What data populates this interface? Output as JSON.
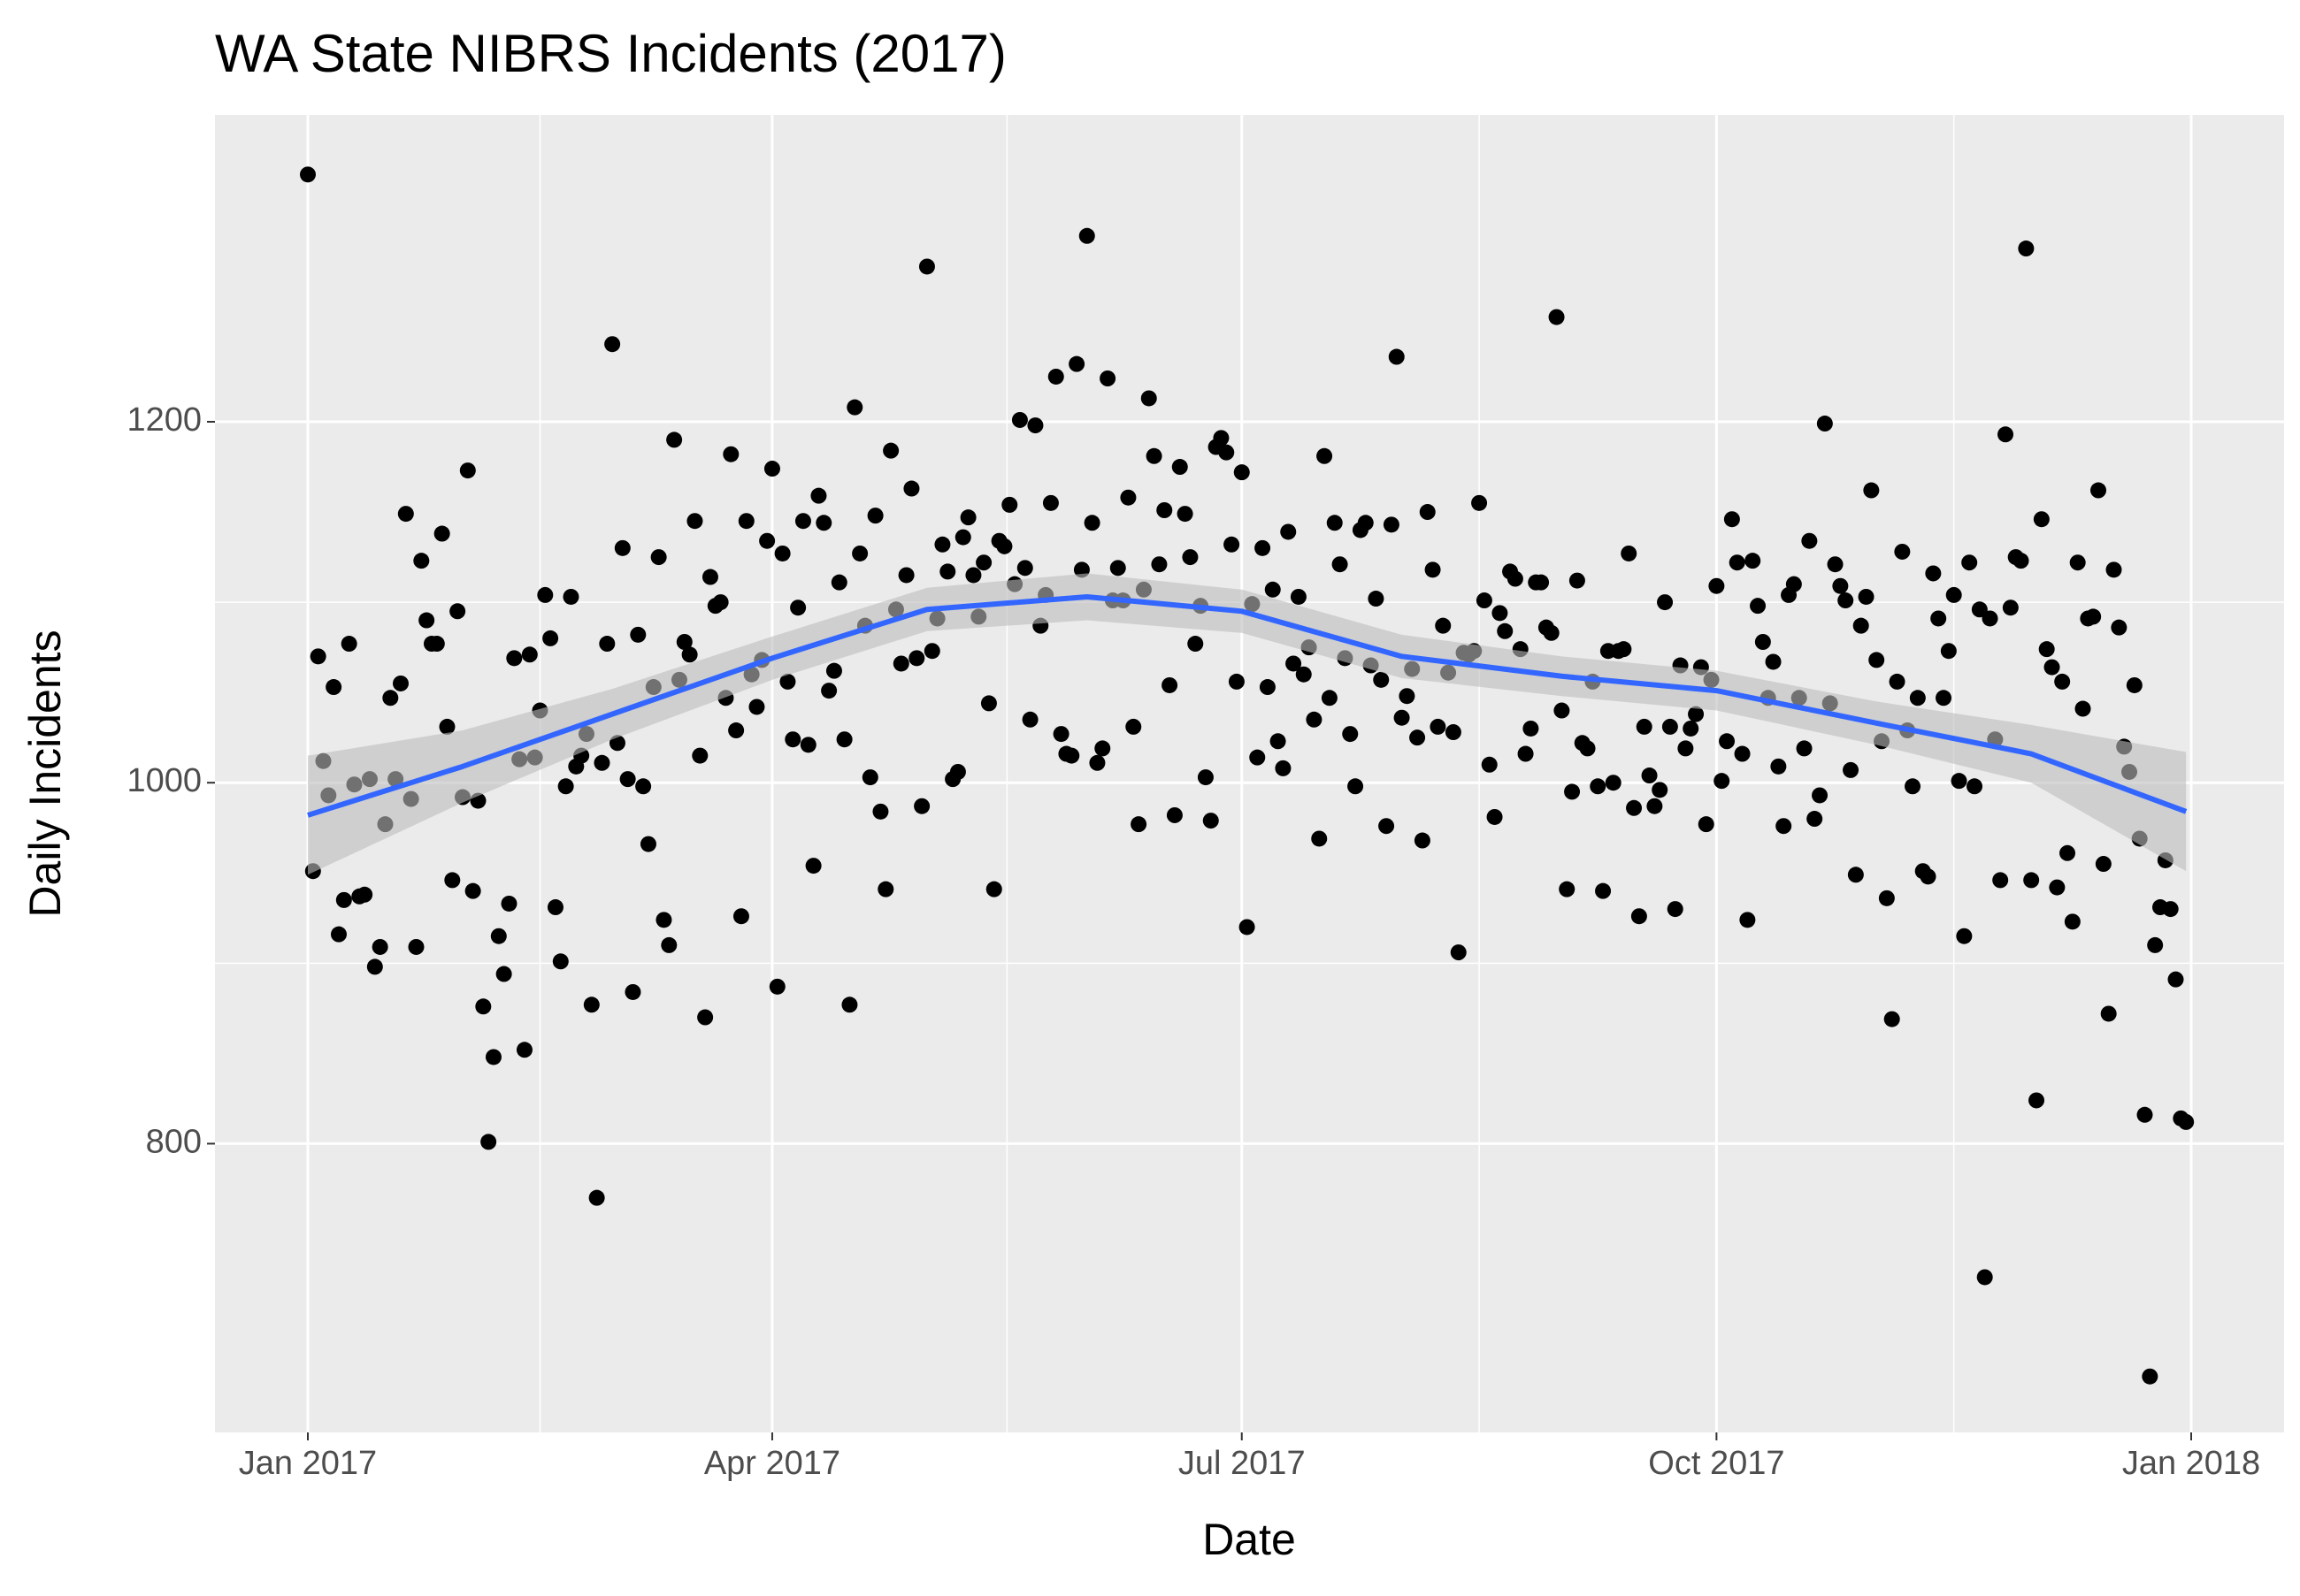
{
  "chart_data": {
    "type": "scatter",
    "title": "WA State NIBRS Incidents (2017)",
    "x_label": "Date",
    "y_label": "Daily Incidents",
    "xlim": [
      -18,
      383
    ],
    "xticks": [
      {
        "value": 0,
        "label": "Jan 2017"
      },
      {
        "value": 90,
        "label": "Apr 2017"
      },
      {
        "value": 181,
        "label": "Jul 2017"
      },
      {
        "value": 273,
        "label": "Oct 2017"
      },
      {
        "value": 365,
        "label": "Jan 2018"
      }
    ],
    "ylim": [
      640,
      1370
    ],
    "yticks": [
      800,
      1000,
      1200
    ],
    "grid": true,
    "point_color": "#000000",
    "x": [
      0,
      1,
      2,
      3,
      4,
      5,
      6,
      7,
      8,
      9,
      10,
      11,
      12,
      13,
      14,
      15,
      16,
      17,
      18,
      19,
      20,
      21,
      22,
      23,
      24,
      25,
      26,
      27,
      28,
      29,
      30,
      31,
      32,
      33,
      34,
      35,
      36,
      37,
      38,
      39,
      40,
      41,
      42,
      43,
      44,
      45,
      46,
      47,
      48,
      49,
      50,
      51,
      52,
      53,
      54,
      55,
      56,
      57,
      58,
      59,
      60,
      61,
      62,
      63,
      64,
      65,
      66,
      67,
      68,
      69,
      70,
      71,
      72,
      73,
      74,
      75,
      76,
      77,
      78,
      79,
      80,
      81,
      82,
      83,
      84,
      85,
      86,
      87,
      88,
      89,
      90,
      91,
      92,
      93,
      94,
      95,
      96,
      97,
      98,
      99,
      100,
      101,
      102,
      103,
      104,
      105,
      106,
      107,
      108,
      109,
      110,
      111,
      112,
      113,
      114,
      115,
      116,
      117,
      118,
      119,
      120,
      121,
      122,
      123,
      124,
      125,
      126,
      127,
      128,
      129,
      130,
      131,
      132,
      133,
      134,
      135,
      136,
      137,
      138,
      139,
      140,
      141,
      142,
      143,
      144,
      145,
      146,
      147,
      148,
      149,
      150,
      151,
      152,
      153,
      154,
      155,
      156,
      157,
      158,
      159,
      160,
      161,
      162,
      163,
      164,
      165,
      166,
      167,
      168,
      169,
      170,
      171,
      172,
      173,
      174,
      175,
      176,
      177,
      178,
      179,
      180,
      181,
      182,
      183,
      184,
      185,
      186,
      187,
      188,
      189,
      190,
      191,
      192,
      193,
      194,
      195,
      196,
      197,
      198,
      199,
      200,
      201,
      202,
      203,
      204,
      205,
      206,
      207,
      208,
      209,
      210,
      211,
      212,
      213,
      214,
      215,
      216,
      217,
      218,
      219,
      220,
      221,
      222,
      223,
      224,
      225,
      226,
      227,
      228,
      229,
      230,
      231,
      232,
      233,
      234,
      235,
      236,
      237,
      238,
      239,
      240,
      241,
      242,
      243,
      244,
      245,
      246,
      247,
      248,
      249,
      250,
      251,
      252,
      253,
      254,
      255,
      256,
      257,
      258,
      259,
      260,
      261,
      262,
      263,
      264,
      265,
      266,
      267,
      268,
      269,
      270,
      271,
      272,
      273,
      274,
      275,
      276,
      277,
      278,
      279,
      280,
      281,
      282,
      283,
      284,
      285,
      286,
      287,
      288,
      289,
      290,
      291,
      292,
      293,
      294,
      295,
      296,
      297,
      298,
      299,
      300,
      301,
      302,
      303,
      304,
      305,
      306,
      307,
      308,
      309,
      310,
      311,
      312,
      313,
      314,
      315,
      316,
      317,
      318,
      319,
      320,
      321,
      322,
      323,
      324,
      325,
      326,
      327,
      328,
      329,
      330,
      331,
      332,
      333,
      334,
      335,
      336,
      337,
      338,
      339,
      340,
      341,
      342,
      343,
      344,
      345,
      346,
      347,
      348,
      349,
      350,
      351,
      352,
      353,
      354,
      355,
      356,
      357,
      358,
      359,
      360,
      361,
      362,
      363,
      364
    ],
    "values": [
      1337,
      951,
      1070,
      1012,
      993,
      1053,
      916,
      935,
      1077,
      999,
      937,
      938,
      1002,
      898,
      909,
      977,
      1047,
      1002,
      1055,
      1149,
      991,
      909,
      1123,
      1090,
      1077,
      1077,
      1138,
      1031,
      946,
      1095,
      992,
      1173,
      940,
      990,
      876,
      801,
      848,
      915,
      894,
      933,
      1069,
      1013,
      852,
      1071,
      1014,
      1040,
      1104,
      1080,
      931,
      901,
      998,
      1103,
      1009,
      1015,
      1027,
      877,
      770,
      1011,
      1077,
      1243,
      1022,
      1130,
      1002,
      884,
      1082,
      998,
      966,
      1053,
      1125,
      924,
      910,
      1190,
      1057,
      1078,
      1071,
      1145,
      1015,
      870,
      1114,
      1098,
      1100,
      1047,
      1182,
      1029,
      926,
      1145,
      1060,
      1042,
      1068,
      1134,
      1174,
      887,
      1127,
      1056,
      1024,
      1097,
      1145,
      1021,
      954,
      1159,
      1144,
      1051,
      1062,
      1111,
      1024,
      877,
      1208,
      1127,
      1087,
      1003,
      1148,
      984,
      941,
      1184,
      1096,
      1066,
      1115,
      1163,
      1069,
      987,
      1286,
      1073,
      1091,
      1132,
      1117,
      1002,
      1006,
      1136,
      1147,
      1115,
      1092,
      1122,
      1044,
      941,
      1134,
      1131,
      1154,
      1110,
      1201,
      1119,
      1035,
      1198,
      1087,
      1104,
      1155,
      1225,
      1027,
      1016,
      1015,
      1232,
      1118,
      1303,
      1144,
      1011,
      1019,
      1224,
      1101,
      1119,
      1101,
      1158,
      1031,
      977,
      1107,
      1213,
      1181,
      1121,
      1151,
      1054,
      982,
      1175,
      1149,
      1125,
      1077,
      1098,
      1003,
      979,
      1186,
      1191,
      1183,
      1132,
      1056,
      1172,
      920,
      1099,
      1014,
      1130,
      1053,
      1107,
      1023,
      1008,
      1139,
      1066,
      1103,
      1060,
      1075,
      1035,
      969,
      1181,
      1047,
      1144,
      1121,
      1069,
      1027,
      998,
      1140,
      1144,
      1065,
      1102,
      1057,
      976,
      1143,
      1236,
      1036,
      1048,
      1063,
      1025,
      968,
      1150,
      1118,
      1031,
      1087,
      1061,
      1028,
      906,
      1072,
      1071,
      1073,
      1155,
      1101,
      1010,
      981,
      1094,
      1084,
      1117,
      1113,
      1074,
      1016,
      1030,
      1111,
      1111,
      1086,
      1083,
      1258,
      1040,
      941,
      995,
      1112,
      1022,
      1019,
      1056,
      998,
      940,
      1073,
      1000,
      1073,
      1074,
      1127,
      986,
      926,
      1031,
      1004,
      987,
      996,
      1100,
      1031,
      930,
      1065,
      1019,
      1030,
      1038,
      1064,
      977,
      1057,
      1109,
      1001,
      1023,
      1146,
      1122,
      1016,
      924,
      1123,
      1098,
      1078,
      1047,
      1067,
      1009,
      976,
      1104,
      1110,
      1047,
      1019,
      1134,
      980,
      993,
      1199,
      1044,
      1121,
      1109,
      1101,
      1007,
      949,
      1087,
      1103,
      1162,
      1068,
      1023,
      936,
      869,
      1056,
      1128,
      1029,
      998,
      1047,
      951,
      948,
      1116,
      1091,
      1047,
      1073,
      1104,
      1001,
      915,
      1122,
      998,
      1096,
      726,
      1091,
      1024,
      946,
      1193,
      1097,
      1125,
      1123,
      1296,
      946,
      824,
      1146,
      1074,
      1064,
      942,
      1056,
      961,
      923,
      1122,
      1041,
      1091,
      1092,
      1162,
      955,
      872,
      1118,
      1086,
      1020,
      1006,
      1054,
      969,
      816,
      671,
      910,
      931,
      957,
      930,
      891,
      814,
      812
    ],
    "smooth": {
      "color": "#3366ff",
      "band_color": "#bdbdbd",
      "x": [
        0,
        30,
        59,
        90,
        120,
        151,
        181,
        212,
        243,
        273,
        304,
        334,
        364
      ],
      "values": [
        982,
        1009,
        1038,
        1069,
        1096,
        1103,
        1095,
        1070,
        1059,
        1051,
        1033,
        1016,
        984
      ],
      "lower": [
        949,
        989,
        1024,
        1057,
        1084,
        1090,
        1083,
        1058,
        1048,
        1040,
        1021,
        1000,
        951
      ],
      "upper": [
        1015,
        1029,
        1052,
        1081,
        1108,
        1116,
        1107,
        1082,
        1070,
        1062,
        1045,
        1032,
        1017
      ]
    }
  }
}
